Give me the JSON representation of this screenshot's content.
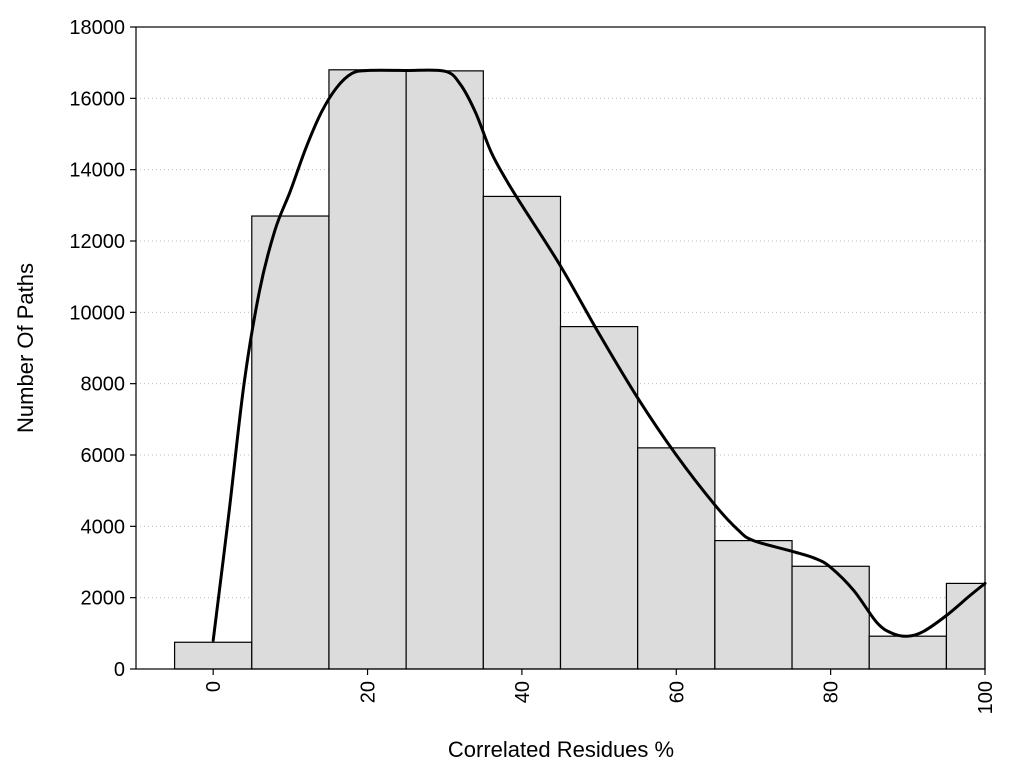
{
  "chart_data": {
    "type": "bar",
    "title": "",
    "xlabel": "Correlated Residues %",
    "ylabel": "Number Of Paths",
    "xlim": [
      -10,
      100
    ],
    "ylim": [
      0,
      18000
    ],
    "grid": "horizontal dotted",
    "bar_width": 10,
    "x_ticks": [
      0,
      20,
      40,
      60,
      80,
      100
    ],
    "y_ticks": [
      0,
      2000,
      4000,
      6000,
      8000,
      10000,
      12000,
      14000,
      16000,
      18000
    ],
    "bar_color": "#dcdcdc",
    "bins": [
      {
        "x": 0,
        "value": 750
      },
      {
        "x": 10,
        "value": 12700
      },
      {
        "x": 20,
        "value": 16800
      },
      {
        "x": 30,
        "value": 16770
      },
      {
        "x": 40,
        "value": 13250
      },
      {
        "x": 50,
        "value": 9600
      },
      {
        "x": 60,
        "value": 6200
      },
      {
        "x": 70,
        "value": 3600
      },
      {
        "x": 80,
        "value": 2880
      },
      {
        "x": 90,
        "value": 920
      },
      {
        "x": 100,
        "value": 2400
      }
    ],
    "curve": {
      "color": "#000000",
      "points": [
        [
          0,
          800
        ],
        [
          2,
          4300
        ],
        [
          4,
          8000
        ],
        [
          6,
          10600
        ],
        [
          8,
          12300
        ],
        [
          10,
          13400
        ],
        [
          12,
          14600
        ],
        [
          14,
          15600
        ],
        [
          16,
          16300
        ],
        [
          18,
          16700
        ],
        [
          20,
          16780
        ],
        [
          25,
          16780
        ],
        [
          30,
          16760
        ],
        [
          32,
          16400
        ],
        [
          34,
          15600
        ],
        [
          36,
          14500
        ],
        [
          38,
          13700
        ],
        [
          40,
          13000
        ],
        [
          45,
          11300
        ],
        [
          50,
          9400
        ],
        [
          55,
          7600
        ],
        [
          60,
          6000
        ],
        [
          65,
          4600
        ],
        [
          68,
          3900
        ],
        [
          70,
          3600
        ],
        [
          75,
          3300
        ],
        [
          78,
          3100
        ],
        [
          80,
          2850
        ],
        [
          83,
          2200
        ],
        [
          86,
          1300
        ],
        [
          88,
          1000
        ],
        [
          90,
          920
        ],
        [
          92,
          1050
        ],
        [
          95,
          1500
        ],
        [
          98,
          2050
        ],
        [
          100,
          2400
        ]
      ]
    }
  }
}
